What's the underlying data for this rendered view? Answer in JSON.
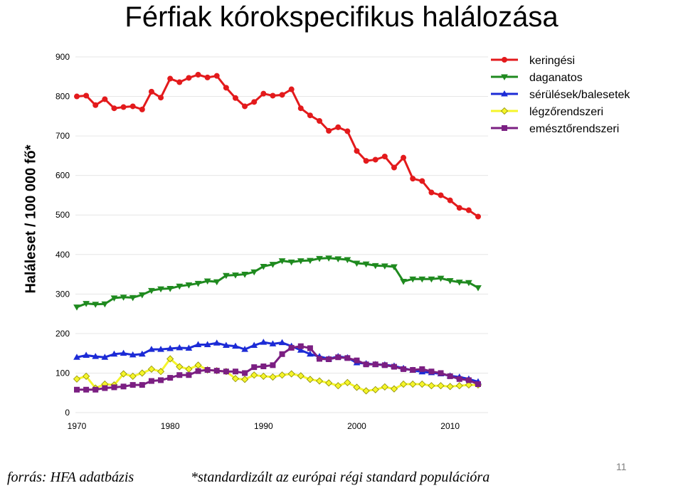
{
  "slide": {
    "title": "Férfiak kórokspecifikus halálozása",
    "footer_source": "forrás: HFA adatbázis",
    "footer_note": "*standardizált az európai régi standard populációra",
    "page_number": "11"
  },
  "chart_data": {
    "type": "line",
    "ylabel": "Haláleset / 100 000 fő*",
    "xlabel": "",
    "xlim": [
      1970,
      2013
    ],
    "ylim": [
      0,
      900
    ],
    "xticks": [
      1970,
      1980,
      1990,
      2000,
      2010
    ],
    "yticks": [
      0,
      100,
      200,
      300,
      400,
      500,
      600,
      700,
      800,
      900
    ],
    "grid": "horizontal",
    "legend_position": "top-right",
    "x": [
      1970,
      1971,
      1972,
      1973,
      1974,
      1975,
      1976,
      1977,
      1978,
      1979,
      1980,
      1981,
      1982,
      1983,
      1984,
      1985,
      1986,
      1987,
      1988,
      1989,
      1990,
      1991,
      1992,
      1993,
      1994,
      1995,
      1996,
      1997,
      1998,
      1999,
      2000,
      2001,
      2002,
      2003,
      2004,
      2005,
      2006,
      2007,
      2008,
      2009,
      2010,
      2011,
      2012,
      2013
    ],
    "series": [
      {
        "name": "keringési",
        "color": "#e31a1c",
        "marker": "circle",
        "values": [
          800,
          802,
          778,
          793,
          770,
          773,
          775,
          767,
          812,
          797,
          845,
          836,
          847,
          855,
          848,
          852,
          822,
          796,
          775,
          786,
          807,
          802,
          804,
          818,
          770,
          752,
          738,
          713,
          722,
          712,
          662,
          637,
          640,
          648,
          620,
          645,
          592,
          586,
          557,
          550,
          537,
          518,
          512,
          496
        ]
      },
      {
        "name": "daganatos",
        "color": "#1f8a1f",
        "marker": "triangle-down",
        "values": [
          267,
          276,
          274,
          275,
          290,
          292,
          291,
          298,
          309,
          313,
          314,
          320,
          323,
          327,
          333,
          331,
          347,
          348,
          350,
          356,
          370,
          375,
          384,
          381,
          384,
          385,
          390,
          391,
          389,
          387,
          378,
          376,
          372,
          371,
          369,
          332,
          338,
          338,
          338,
          340,
          334,
          330,
          329,
          316
        ]
      },
      {
        "name": "sérülések/balesetek",
        "color": "#1c2bd6",
        "marker": "triangle-up",
        "values": [
          140,
          145,
          142,
          140,
          148,
          150,
          146,
          148,
          160,
          160,
          162,
          164,
          163,
          172,
          172,
          176,
          170,
          168,
          160,
          170,
          178,
          174,
          177,
          168,
          158,
          148,
          142,
          136,
          142,
          139,
          126,
          124,
          122,
          121,
          118,
          112,
          107,
          103,
          101,
          98,
          93,
          90,
          85,
          78
        ]
      },
      {
        "name": "légzőrendszeri",
        "color": "#f5f52a",
        "marker": "diamond",
        "values": [
          85,
          92,
          62,
          72,
          70,
          98,
          92,
          100,
          110,
          104,
          136,
          116,
          110,
          120,
          108,
          106,
          104,
          86,
          84,
          95,
          92,
          90,
          95,
          98,
          93,
          84,
          80,
          75,
          68,
          76,
          64,
          55,
          58,
          65,
          60,
          72,
          72,
          72,
          68,
          68,
          66,
          68,
          70,
          70
        ]
      },
      {
        "name": "emésztőrendszeri",
        "color": "#7b1f82",
        "marker": "square",
        "values": [
          58,
          58,
          58,
          62,
          64,
          66,
          70,
          70,
          80,
          82,
          88,
          95,
          95,
          105,
          108,
          106,
          104,
          104,
          100,
          115,
          117,
          120,
          148,
          164,
          168,
          163,
          136,
          135,
          140,
          138,
          132,
          122,
          122,
          120,
          116,
          110,
          108,
          110,
          104,
          100,
          92,
          85,
          82,
          72
        ]
      }
    ]
  }
}
